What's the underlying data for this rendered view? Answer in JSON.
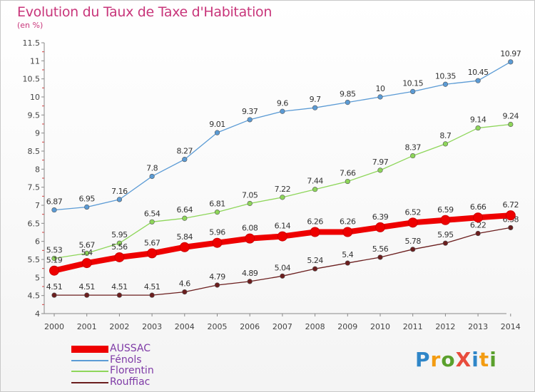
{
  "title": "Evolution du Taux de Taxe d'Habitation",
  "unit_label": "(en %)",
  "logo_text": "ProXiti",
  "chart_data": {
    "type": "line",
    "title": "Evolution du Taux de Taxe d'Habitation",
    "ylabel": "(en %)",
    "xlabel": "",
    "ylim": [
      4,
      11.5
    ],
    "yticks": [
      "4",
      "4.5",
      "5",
      "5.5",
      "6",
      "6.5",
      "7",
      "7.5",
      "8",
      "8.5",
      "9",
      "9.5",
      "10",
      "10.5",
      "11",
      "11.5"
    ],
    "grid": false,
    "legend_position": "bottom-left",
    "categories": [
      "2000",
      "2001",
      "2002",
      "2003",
      "2004",
      "2005",
      "2006",
      "2007",
      "2008",
      "2009",
      "2010",
      "2011",
      "2012",
      "2013",
      "2014"
    ],
    "series": [
      {
        "name": "AUSSAC",
        "color": "#ee0000",
        "values": [
          5.19,
          5.4,
          5.56,
          5.67,
          5.84,
          5.96,
          6.08,
          6.14,
          6.26,
          6.26,
          6.39,
          6.52,
          6.59,
          6.66,
          6.72
        ],
        "labels": [
          "5.19",
          "5.4",
          "5.56",
          "5.67",
          "5.84",
          "5.96",
          "6.08",
          "6.14",
          "6.26",
          "6.26",
          "6.39",
          "6.52",
          "6.59",
          "6.66",
          "6.72"
        ]
      },
      {
        "name": "Fénols",
        "color": "#5b9bd5",
        "values": [
          6.87,
          6.95,
          7.16,
          7.8,
          8.27,
          9.01,
          9.37,
          9.6,
          9.7,
          9.85,
          10,
          10.15,
          10.35,
          10.45,
          10.97
        ],
        "labels": [
          "6.87",
          "6.95",
          "7.16",
          "7.8",
          "8.27",
          "9.01",
          "9.37",
          "9.6",
          "9.7",
          "9.85",
          "10",
          "10.15",
          "10.35",
          "10.45",
          "10.97"
        ]
      },
      {
        "name": "Florentin",
        "color": "#8ed65a",
        "values": [
          5.53,
          5.67,
          5.95,
          6.54,
          6.64,
          6.81,
          7.05,
          7.22,
          7.44,
          7.66,
          7.97,
          8.37,
          8.7,
          9.14,
          9.24
        ],
        "labels": [
          "5.53",
          "5.67",
          "5.95",
          "6.54",
          "6.64",
          "6.81",
          "7.05",
          "7.22",
          "7.44",
          "7.66",
          "7.97",
          "8.37",
          "8.7",
          "9.14",
          "9.24"
        ]
      },
      {
        "name": "Rouffiac",
        "color": "#6b1e1e",
        "values": [
          4.51,
          4.51,
          4.51,
          4.51,
          4.6,
          4.79,
          4.89,
          5.04,
          5.24,
          5.4,
          5.56,
          5.78,
          5.95,
          6.22,
          6.38
        ],
        "labels": [
          "4.51",
          "4.51",
          "4.51",
          "4.51",
          "4.6",
          "4.79",
          "4.89",
          "5.04",
          "5.24",
          "5.4",
          "5.56",
          "5.78",
          "5.95",
          "6.22",
          "6.38"
        ]
      }
    ]
  }
}
